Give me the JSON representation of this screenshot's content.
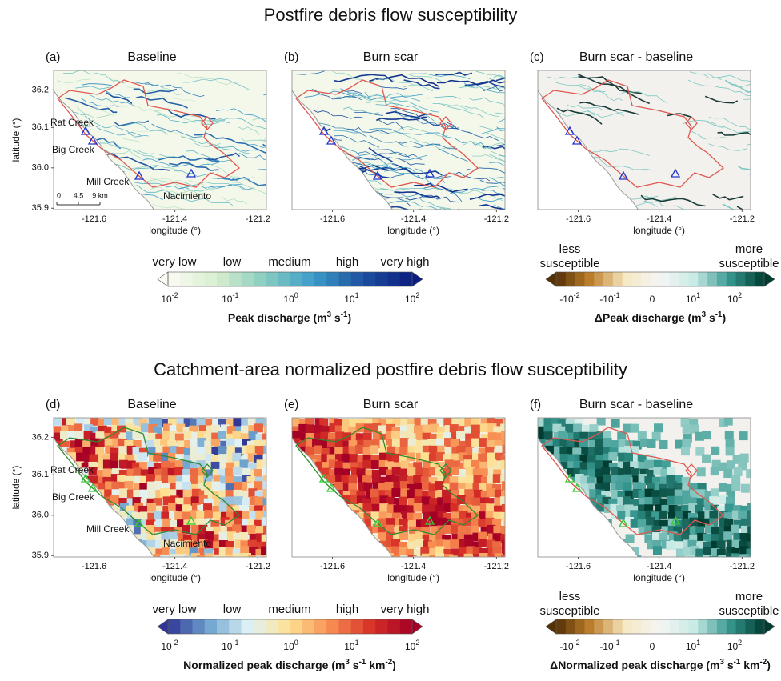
{
  "figure": {
    "sections": [
      {
        "title": "Postfire debris flow susceptibility",
        "panels": [
          {
            "label": "(a)",
            "title": "Baseline"
          },
          {
            "label": "(b)",
            "title": "Burn scar"
          },
          {
            "label": "(c)",
            "title": "Burn scar - baseline"
          }
        ],
        "colorbars": [
          {
            "categories": [
              "very low",
              "low",
              "medium",
              "high",
              "very high"
            ],
            "ticks": [
              {
                "base": "10",
                "exp": "-2"
              },
              {
                "base": "10",
                "exp": "-1"
              },
              {
                "base": "10",
                "exp": "0"
              },
              {
                "base": "10",
                "exp": "1"
              },
              {
                "base": "10",
                "exp": "2"
              }
            ],
            "label": [
              {
                "text": "Peak discharge (m"
              },
              {
                "sup": "3"
              },
              {
                "text": " s"
              },
              {
                "sup": "-1"
              },
              {
                "text": ")"
              }
            ]
          },
          {
            "ends": [
              [
                "less",
                "susceptible"
              ],
              [
                "more",
                "susceptible"
              ]
            ],
            "ticks": [
              {
                "base": "-10",
                "exp": "-2"
              },
              {
                "base": "-10",
                "exp": "-1"
              },
              {
                "base": "0"
              },
              {
                "base": "10",
                "exp": "1"
              },
              {
                "base": "10",
                "exp": "2"
              }
            ],
            "label": [
              {
                "text": "ΔPeak discharge (m"
              },
              {
                "sup": "3"
              },
              {
                "text": " s"
              },
              {
                "sup": "-1"
              },
              {
                "text": ")"
              }
            ]
          }
        ]
      },
      {
        "title": "Catchment-area normalized postfire debris flow susceptibility",
        "panels": [
          {
            "label": "(d)",
            "title": "Baseline"
          },
          {
            "label": "(e)",
            "title": "Burn scar"
          },
          {
            "label": "(f)",
            "title": "Burn scar - baseline"
          }
        ],
        "colorbars": [
          {
            "categories": [
              "very low",
              "low",
              "medium",
              "high",
              "very high"
            ],
            "ticks": [
              {
                "base": "10",
                "exp": "-2"
              },
              {
                "base": "10",
                "exp": "-1"
              },
              {
                "base": "10",
                "exp": "0"
              },
              {
                "base": "10",
                "exp": "1"
              },
              {
                "base": "10",
                "exp": "2"
              }
            ],
            "label": [
              {
                "text": "Normalized peak discharge (m"
              },
              {
                "sup": "3"
              },
              {
                "text": " s"
              },
              {
                "sup": "-1"
              },
              {
                "text": " km"
              },
              {
                "sup": "-2"
              },
              {
                "text": ")"
              }
            ]
          },
          {
            "ends": [
              [
                "less",
                "susceptible"
              ],
              [
                "more",
                "susceptible"
              ]
            ],
            "ticks": [
              {
                "base": "-10",
                "exp": "-2"
              },
              {
                "base": "-10",
                "exp": "-1"
              },
              {
                "base": "0"
              },
              {
                "base": "10",
                "exp": "1"
              },
              {
                "base": "10",
                "exp": "2"
              }
            ],
            "label": [
              {
                "text": "ΔNormalized peak discharge (m"
              },
              {
                "sup": "3"
              },
              {
                "text": " s"
              },
              {
                "sup": "-1"
              },
              {
                "text": " km"
              },
              {
                "sup": "-2"
              },
              {
                "text": ")"
              }
            ]
          }
        ]
      }
    ],
    "x_axis_label": "longitude (°)",
    "y_axis_label": "latitude (°)",
    "lon_ticks": [
      "-121.6",
      "-121.4",
      "-121.2"
    ],
    "lat_ticks": [
      "36.2",
      "36.1",
      "36.0",
      "35.9"
    ],
    "place_labels": [
      "Rat Creek",
      "Big Creek",
      "Mill Creek",
      "Nacimiento"
    ],
    "scale_bar": [
      "0",
      "4.5",
      "9 km"
    ]
  }
}
